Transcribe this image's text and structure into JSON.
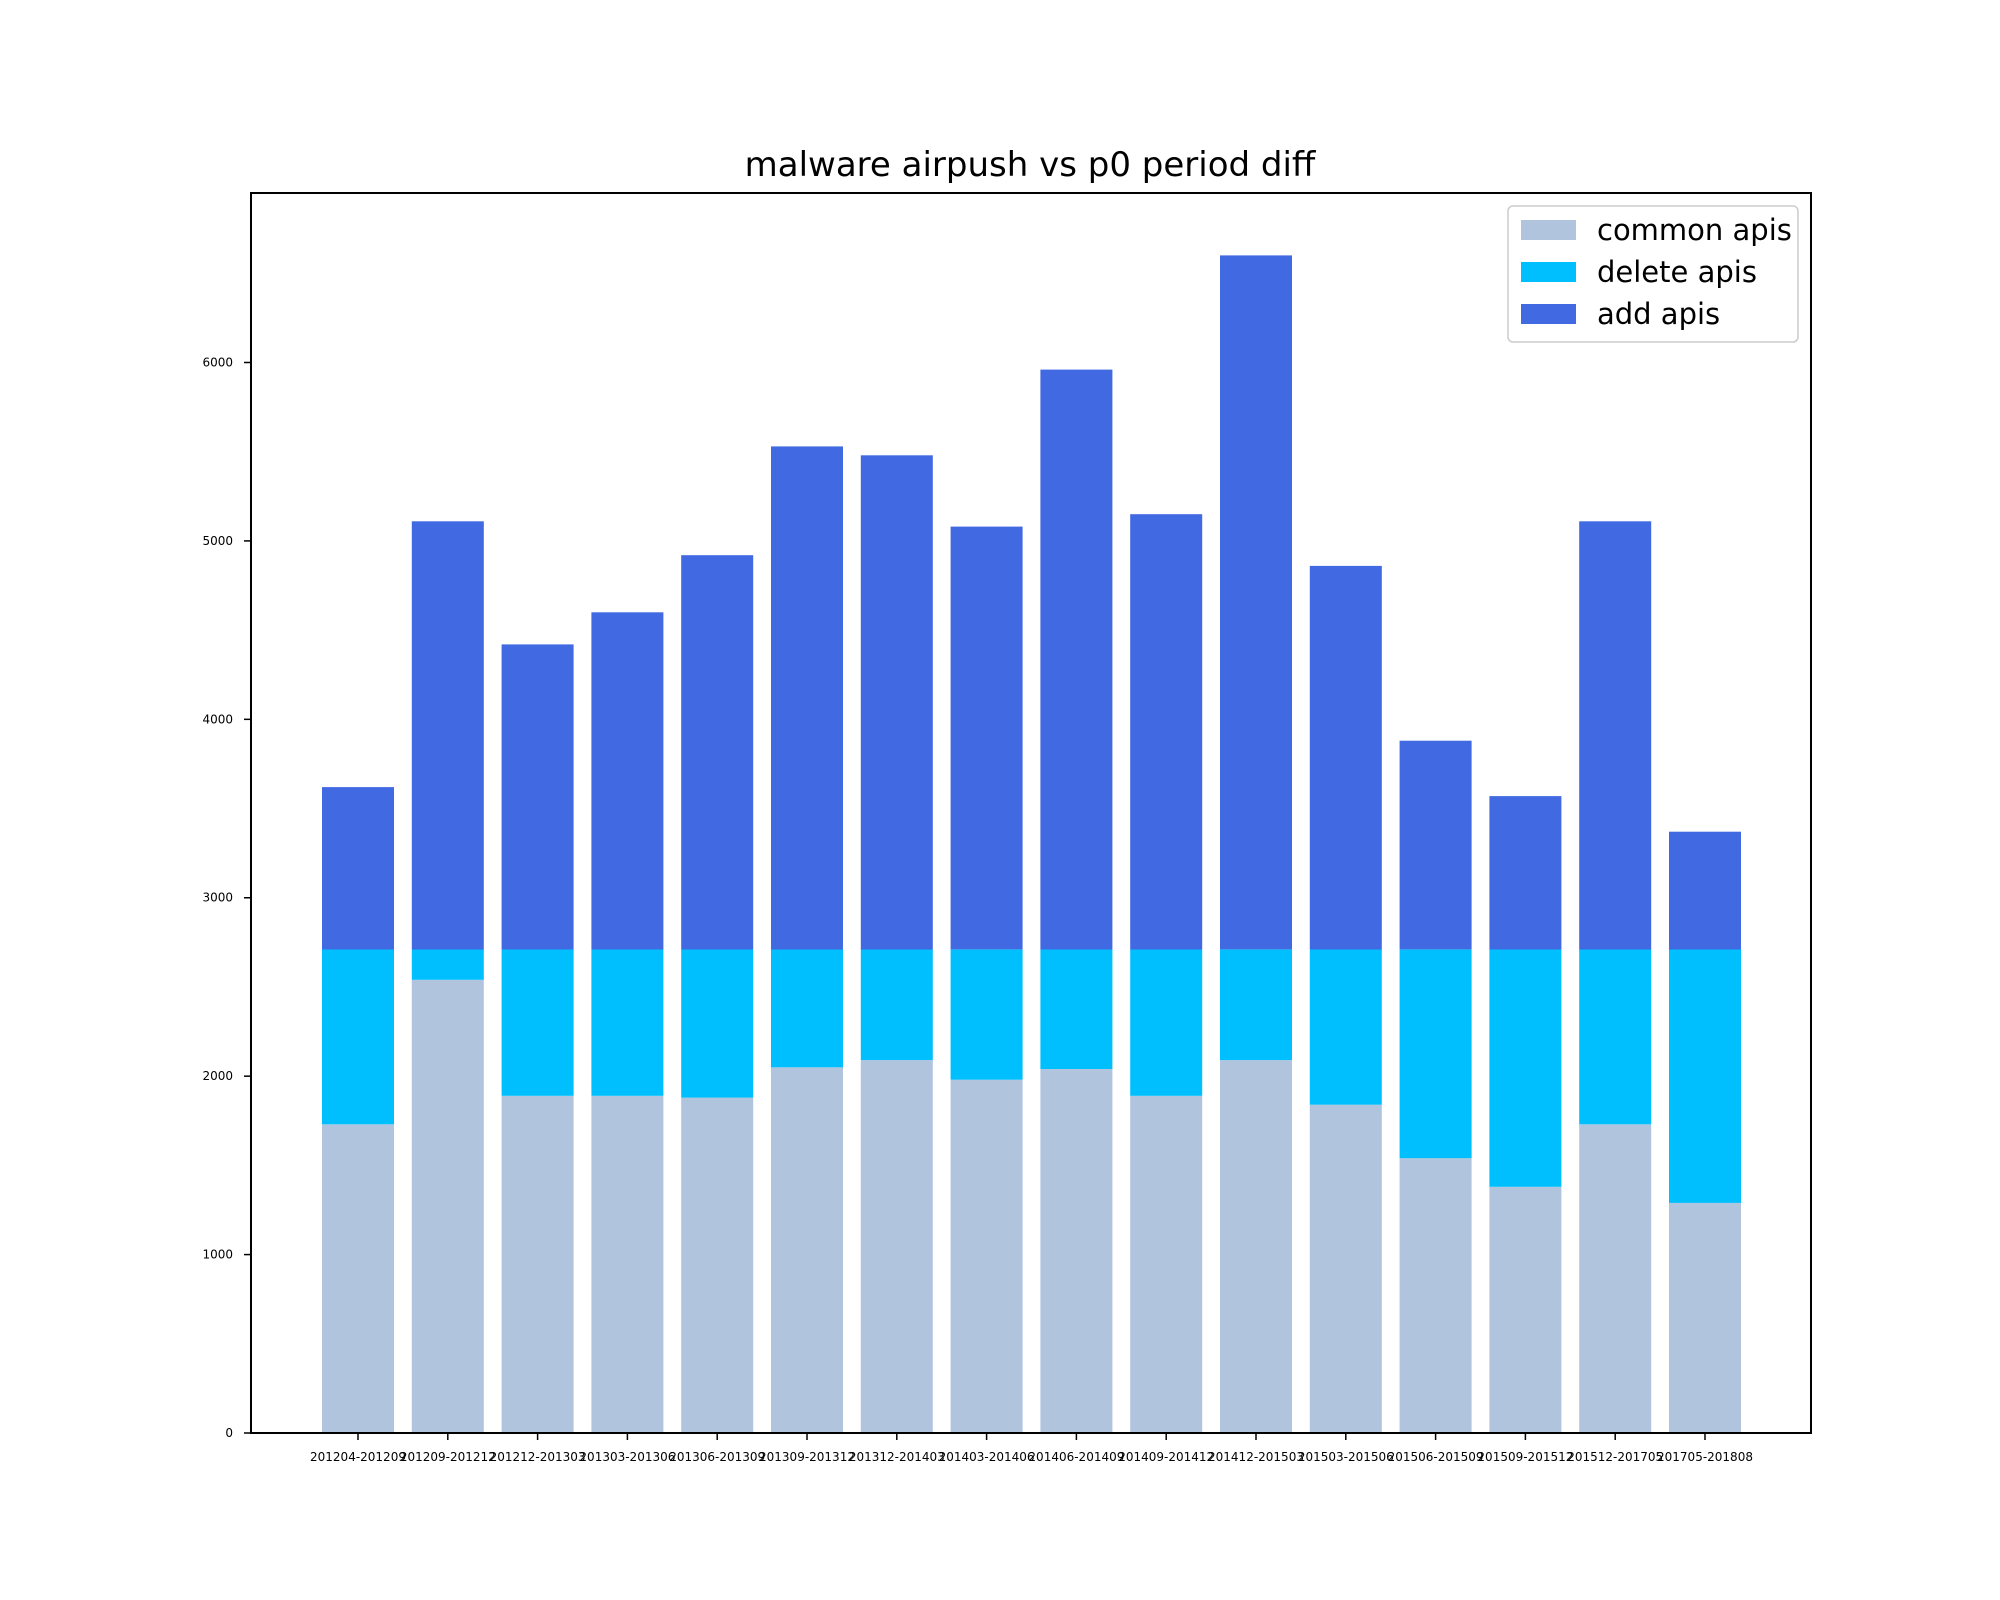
{
  "chart_data": {
    "type": "bar",
    "stacked": true,
    "title": "malware airpush vs p0 period diff",
    "xlabel": "",
    "ylabel": "",
    "ylim": [
      0,
      6950
    ],
    "yticks": [
      0,
      1000,
      2000,
      3000,
      4000,
      5000,
      6000
    ],
    "grid": false,
    "legend_position": "top-right",
    "categories": [
      "201204-201209",
      "201209-201212",
      "201212-201303",
      "201303-201306",
      "201306-201309",
      "201309-201312",
      "201312-201403",
      "201403-201406",
      "201406-201409",
      "201409-201412",
      "201412-201503",
      "201503-201506",
      "201506-201509",
      "201509-201512",
      "201512-201705",
      "201705-201808"
    ],
    "series": [
      {
        "name": "common apis",
        "color": "#b0c4de",
        "values": [
          1730,
          2540,
          1890,
          1890,
          1880,
          2050,
          2090,
          1980,
          2040,
          1890,
          2090,
          1840,
          1540,
          1380,
          1730,
          1290
        ]
      },
      {
        "name": "delete apis",
        "color": "#00bfff",
        "values": [
          980,
          170,
          820,
          820,
          830,
          660,
          620,
          730,
          670,
          820,
          620,
          870,
          1170,
          1330,
          980,
          1420
        ]
      },
      {
        "name": "add apis",
        "color": "#4169e1",
        "values": [
          910,
          2400,
          1710,
          1890,
          2210,
          2820,
          2770,
          2370,
          3250,
          2440,
          3890,
          2150,
          1170,
          860,
          2400,
          660
        ]
      }
    ]
  }
}
